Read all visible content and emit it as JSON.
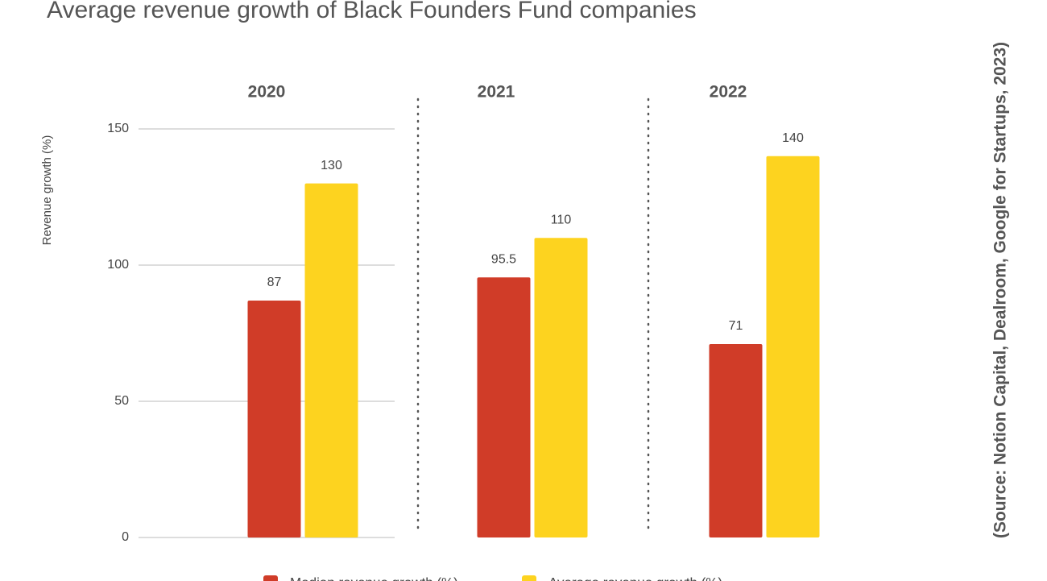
{
  "chart_data": {
    "type": "bar",
    "title": "Average revenue growth of Black Founders Fund companies",
    "y_label": "Revenue growth (%)",
    "source": "(Source: Notion Capital, Dealroom, Google for Startups, 2023)",
    "categories": [
      "2020",
      "2021",
      "2022"
    ],
    "series": [
      {
        "name": "Median revenue growth (%)",
        "color": "#d03c28",
        "values": [
          87,
          95.5,
          71
        ]
      },
      {
        "name": "Average revenue growth (%)",
        "color": "#fdd31f",
        "values": [
          130,
          110,
          140
        ]
      }
    ],
    "ylim": [
      0,
      150
    ],
    "yticks": [
      0,
      50,
      100,
      150
    ],
    "grid": true
  }
}
